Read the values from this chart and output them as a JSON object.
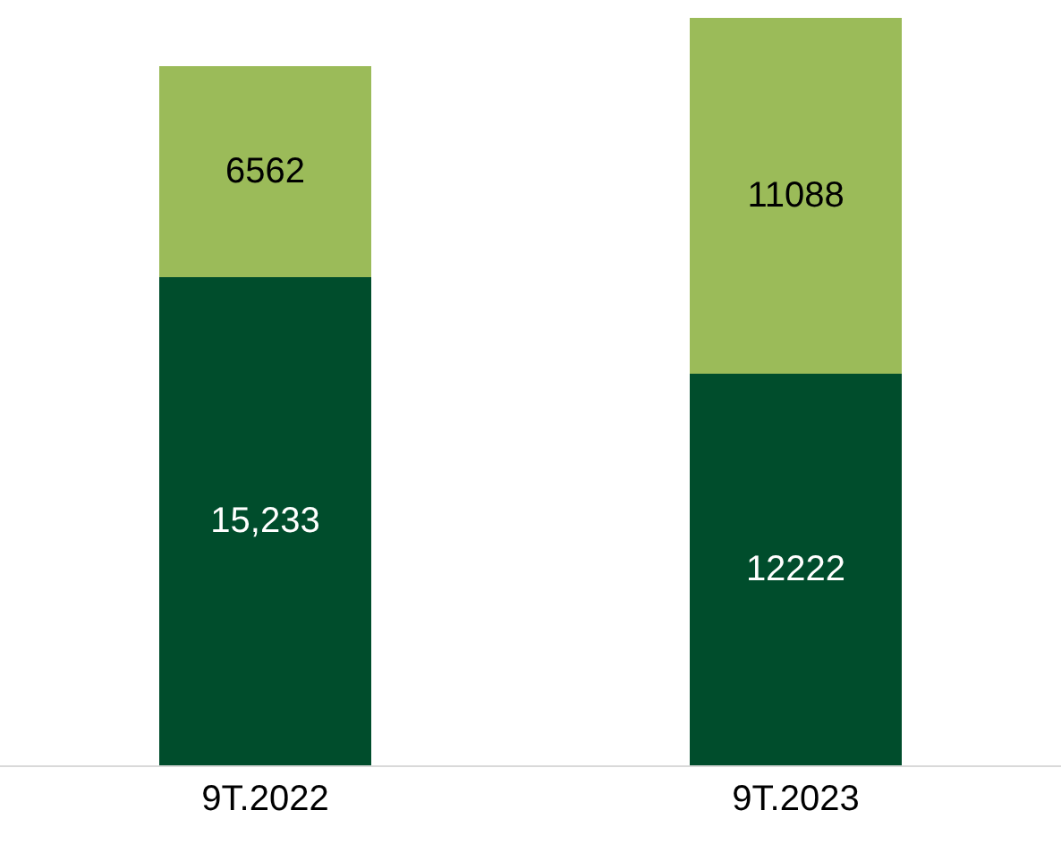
{
  "chart_data": {
    "type": "bar",
    "stacked": true,
    "categories": [
      "9T.2022",
      "9T.2023"
    ],
    "series": [
      {
        "color": "#004d2c",
        "values": [
          15233,
          12222
        ],
        "value_labels": [
          "15,233",
          "12222"
        ]
      },
      {
        "color": "#9bbb59",
        "values": [
          6562,
          11088
        ],
        "value_labels": [
          "6562",
          "11088"
        ]
      }
    ],
    "tick_labels": "x"
  }
}
